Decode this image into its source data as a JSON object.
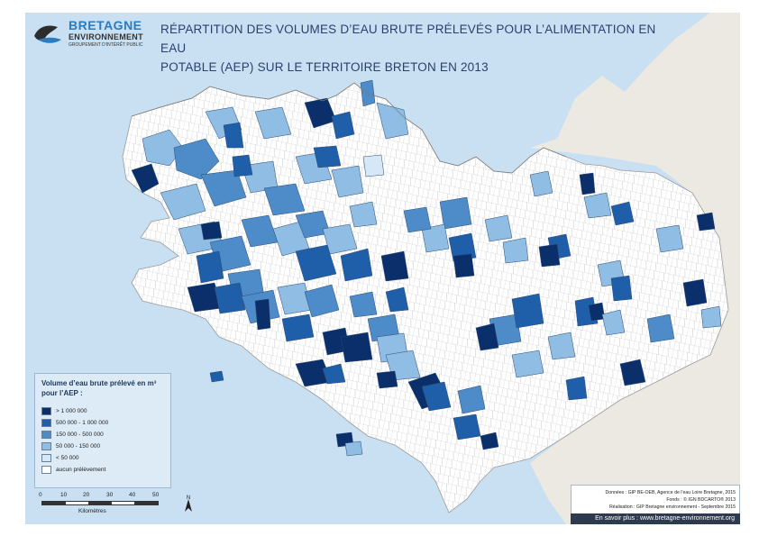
{
  "header": {
    "logo_title": "BRETAGNE",
    "logo_subtitle": "ENVIRONNEMENT",
    "logo_tagline": "GROUPEMENT D'INTÉRÊT PUBLIC",
    "title_line1": "RÉPARTITION DES VOLUMES D’EAU BRUTE PRÉLEVÉS POUR L’ALIMENTATION EN EAU",
    "title_line2": "POTABLE (AEP) SUR LE TERRITOIRE BRETON EN 2013"
  },
  "colors": {
    "sea": "#c8e0f2",
    "neighbour_land": "#ece9e2",
    "no_withdrawal": "#ffffff",
    "commune_border": "#b8b8b8",
    "class1": "#0a2f6b",
    "class2": "#1f5ea8",
    "class3": "#4d8cc8",
    "class4": "#8fbde4",
    "class5": "#d6e8f6"
  },
  "legend": {
    "title": "Volume d’eau brute prélevé en m³ pour l’AEP :",
    "items": [
      {
        "label": "> 1 000 000",
        "color": "#0a2f6b"
      },
      {
        "label": "500 000 - 1 000 000",
        "color": "#1f5ea8"
      },
      {
        "label": "150 000 - 500 000",
        "color": "#4d8cc8"
      },
      {
        "label": "50 000 - 150 000",
        "color": "#8fbde4"
      },
      {
        "label": "< 50 000",
        "color": "#d6e8f6"
      },
      {
        "label": "aucun prélèvement",
        "color": "#ffffff"
      }
    ]
  },
  "scale": {
    "ticks": [
      "0",
      "10",
      "20",
      "30",
      "40",
      "50"
    ],
    "unit": "Kilomètres",
    "north": "N"
  },
  "credits": {
    "line1": "Données : GIP BE-OEB, Agence de l'eau Loire Bretagne, 2015",
    "line2": "Fonds : © IGN BDCARTO® 2013",
    "line3": "Réalisation : GIP Bretagne environnement - Septembre 2015",
    "website": "En savoir plus : www.bretagne-environnement.org"
  }
}
